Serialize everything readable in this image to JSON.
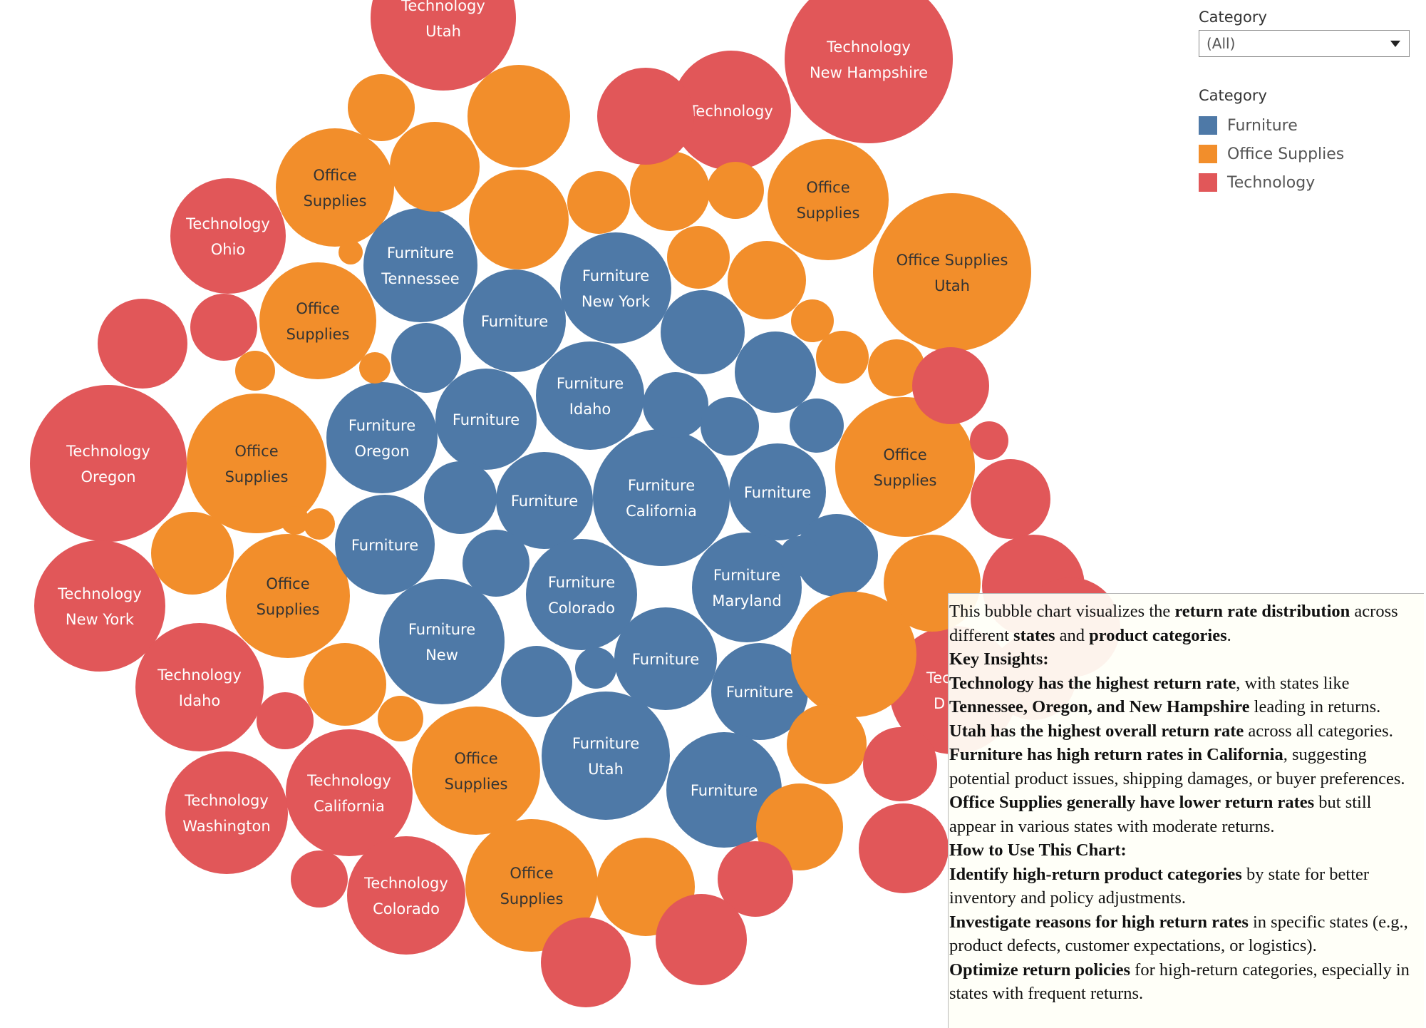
{
  "filter": {
    "title": "Category",
    "value": "(All)"
  },
  "legend": {
    "title": "Category",
    "items": [
      {
        "label": "Furniture",
        "color": "#4e79a7"
      },
      {
        "label": "Office Supplies",
        "color": "#f28e2b"
      },
      {
        "label": "Technology",
        "color": "#e15759"
      }
    ]
  },
  "chart_data": {
    "type": "bubble",
    "colors": {
      "Furniture": "#4e79a7",
      "Office Supplies": "#f28e2b",
      "Technology": "#e15759"
    },
    "bubbles": [
      {
        "category": "Technology",
        "state": "Utah",
        "lines": [
          "Technology",
          "Utah"
        ]
      },
      {
        "category": "Technology",
        "state": "New Hampshire",
        "lines": [
          "Technology",
          "New Hampshire"
        ]
      },
      {
        "category": "Technology",
        "lines": [
          "Technology"
        ]
      },
      {
        "category": "Technology",
        "state": "Ohio",
        "lines": [
          "Technology",
          "Ohio"
        ]
      },
      {
        "category": "Technology",
        "state": "Oregon",
        "lines": [
          "Technology",
          "Oregon"
        ]
      },
      {
        "category": "Technology",
        "state": "New York",
        "lines": [
          "Technology",
          "New York"
        ]
      },
      {
        "category": "Technology",
        "state": "Idaho",
        "lines": [
          "Technology",
          "Idaho"
        ]
      },
      {
        "category": "Technology",
        "state": "California",
        "lines": [
          "Technology",
          "California"
        ]
      },
      {
        "category": "Technology",
        "state": "Washington",
        "lines": [
          "Technology",
          "Washington"
        ]
      },
      {
        "category": "Technology",
        "state": "Colorado",
        "lines": [
          "Technology",
          "Colorado"
        ]
      },
      {
        "category": "Technology",
        "lines": [
          "Tec",
          "D"
        ]
      },
      {
        "category": "Office Supplies",
        "state": "Utah",
        "lines": [
          "Office Supplies",
          "Utah"
        ]
      },
      {
        "category": "Office Supplies",
        "lines": [
          "Office",
          "Supplies"
        ]
      },
      {
        "category": "Office Supplies",
        "lines": [
          "Office",
          "Supplies"
        ]
      },
      {
        "category": "Office Supplies",
        "lines": [
          "Office",
          "Supplies"
        ]
      },
      {
        "category": "Office Supplies",
        "lines": [
          "Office",
          "Supplies"
        ]
      },
      {
        "category": "Office Supplies",
        "lines": [
          "Office",
          "Supplies"
        ]
      },
      {
        "category": "Office Supplies",
        "lines": [
          "Office",
          "Supplies"
        ]
      },
      {
        "category": "Office Supplies",
        "lines": [
          "Office",
          "Supplies"
        ]
      },
      {
        "category": "Office Supplies",
        "lines": [
          "Office",
          "Supplies"
        ]
      },
      {
        "category": "Furniture",
        "state": "Tennessee",
        "lines": [
          "Furniture",
          "Tennessee"
        ]
      },
      {
        "category": "Furniture",
        "state": "New York",
        "lines": [
          "Furniture",
          "New York"
        ]
      },
      {
        "category": "Furniture",
        "lines": [
          "Furniture"
        ]
      },
      {
        "category": "Furniture",
        "state": "Idaho",
        "lines": [
          "Furniture",
          "Idaho"
        ]
      },
      {
        "category": "Furniture",
        "state": "Oregon",
        "lines": [
          "Furniture",
          "Oregon"
        ]
      },
      {
        "category": "Furniture",
        "lines": [
          "Furniture"
        ]
      },
      {
        "category": "Furniture",
        "lines": [
          "Furniture"
        ]
      },
      {
        "category": "Furniture",
        "state": "California",
        "lines": [
          "Furniture",
          "California"
        ]
      },
      {
        "category": "Furniture",
        "lines": [
          "Furniture"
        ]
      },
      {
        "category": "Furniture",
        "lines": [
          "Furniture"
        ]
      },
      {
        "category": "Furniture",
        "state": "Colorado",
        "lines": [
          "Furniture",
          "Colorado"
        ]
      },
      {
        "category": "Furniture",
        "state": "Maryland",
        "lines": [
          "Furniture",
          "Maryland"
        ]
      },
      {
        "category": "Furniture",
        "state": "New",
        "lines": [
          "Furniture",
          "New"
        ]
      },
      {
        "category": "Furniture",
        "lines": [
          "Furniture"
        ]
      },
      {
        "category": "Furniture",
        "lines": [
          "Furniture"
        ]
      },
      {
        "category": "Furniture",
        "state": "Utah",
        "lines": [
          "Furniture",
          "Utah"
        ]
      },
      {
        "category": "Furniture",
        "lines": [
          "Furniture"
        ]
      },
      {
        "category": "Furniture"
      },
      {
        "category": "Furniture"
      },
      {
        "category": "Furniture"
      },
      {
        "category": "Furniture"
      },
      {
        "category": "Furniture"
      },
      {
        "category": "Furniture"
      },
      {
        "category": "Furniture"
      },
      {
        "category": "Furniture"
      },
      {
        "category": "Furniture"
      },
      {
        "category": "Furniture"
      },
      {
        "category": "Furniture"
      },
      {
        "category": "Furniture"
      },
      {
        "category": "Office Supplies"
      },
      {
        "category": "Office Supplies"
      },
      {
        "category": "Office Supplies"
      },
      {
        "category": "Office Supplies"
      },
      {
        "category": "Office Supplies"
      },
      {
        "category": "Office Supplies"
      },
      {
        "category": "Office Supplies"
      },
      {
        "category": "Office Supplies"
      },
      {
        "category": "Office Supplies"
      },
      {
        "category": "Office Supplies"
      },
      {
        "category": "Office Supplies"
      },
      {
        "category": "Office Supplies"
      },
      {
        "category": "Office Supplies"
      },
      {
        "category": "Office Supplies"
      },
      {
        "category": "Office Supplies"
      },
      {
        "category": "Office Supplies"
      },
      {
        "category": "Office Supplies"
      },
      {
        "category": "Office Supplies"
      },
      {
        "category": "Office Supplies"
      },
      {
        "category": "Office Supplies"
      },
      {
        "category": "Office Supplies"
      },
      {
        "category": "Office Supplies"
      },
      {
        "category": "Office Supplies"
      },
      {
        "category": "Office Supplies"
      },
      {
        "category": "Office Supplies"
      },
      {
        "category": "Technology"
      },
      {
        "category": "Technology"
      },
      {
        "category": "Technology"
      },
      {
        "category": "Technology"
      },
      {
        "category": "Technology"
      },
      {
        "category": "Technology"
      },
      {
        "category": "Technology"
      },
      {
        "category": "Technology"
      },
      {
        "category": "Technology"
      },
      {
        "category": "Technology"
      },
      {
        "category": "Technology"
      },
      {
        "category": "Technology"
      },
      {
        "category": "Technology"
      },
      {
        "category": "Technology"
      },
      {
        "category": "Technology"
      },
      {
        "category": "Technology"
      },
      {
        "category": "Technology"
      },
      {
        "category": "Technology"
      }
    ]
  },
  "tooltip": {
    "paragraphs": [
      [
        {
          "t": "This bubble chart visualizes the "
        },
        {
          "t": "return rate distribution",
          "b": true
        },
        {
          "t": " across different "
        },
        {
          "t": "states",
          "b": true
        },
        {
          "t": " and "
        },
        {
          "t": "product categories",
          "b": true
        },
        {
          "t": "."
        }
      ],
      [
        {
          "t": "Key Insights:",
          "b": true
        }
      ],
      [
        {
          "t": " Technology has the highest return rate",
          "b": true
        },
        {
          "t": ", with states like "
        },
        {
          "t": "Tennessee, Oregon, and New Hampshire",
          "b": true
        },
        {
          "t": " leading in returns."
        }
      ],
      [
        {
          "t": " Utah has the highest overall return rate",
          "b": true
        },
        {
          "t": " across all categories."
        }
      ],
      [
        {
          "t": " Furniture has high return rates in California",
          "b": true
        },
        {
          "t": ", suggesting potential product issues, shipping damages, or buyer preferences."
        }
      ],
      [
        {
          "t": " Office Supplies generally have lower return rates",
          "b": true
        },
        {
          "t": " but still appear in various states with moderate returns."
        }
      ],
      [
        {
          "t": "How to Use This Chart:",
          "b": true
        }
      ],
      [
        {
          "t": "Identify high-return product categories",
          "b": true
        },
        {
          "t": " by state for better inventory and policy adjustments."
        }
      ],
      [
        {
          "t": "Investigate reasons for high return rates",
          "b": true
        },
        {
          "t": " in specific states (e.g., product defects, customer expectations, or logistics)."
        }
      ],
      [
        {
          "t": "Optimize return policies",
          "b": true
        },
        {
          "t": " for high-return categories, especially in states with frequent returns."
        }
      ]
    ]
  }
}
